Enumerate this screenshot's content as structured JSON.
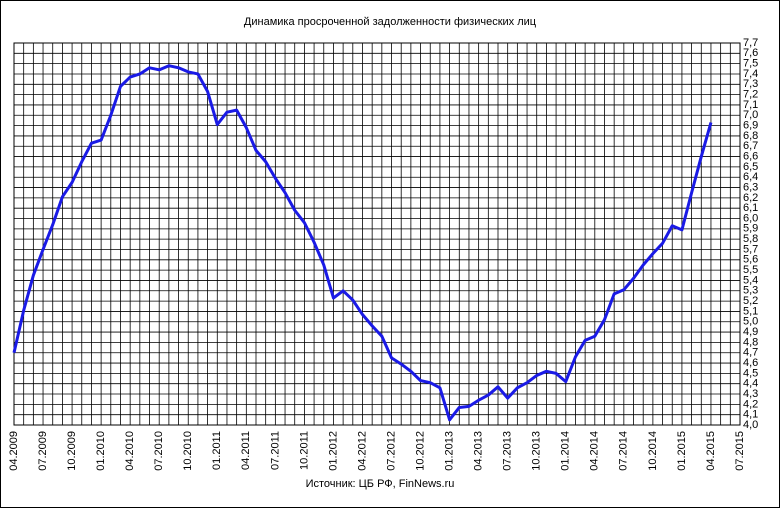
{
  "chart_data": {
    "type": "line",
    "title": "Динамика просроченной задолженности физических лиц",
    "source": "Источник: ЦБ РФ, FinNews.ru",
    "categories": [
      "04.2009",
      null,
      null,
      "07.2009",
      null,
      null,
      "10.2009",
      null,
      null,
      "01.2010",
      null,
      null,
      "04.2010",
      null,
      null,
      "07.2010",
      null,
      null,
      "10.2010",
      null,
      null,
      "01.2011",
      null,
      null,
      "04.2011",
      null,
      null,
      "07.2011",
      null,
      null,
      "10.2011",
      null,
      null,
      "01.2012",
      null,
      null,
      "04.2012",
      null,
      null,
      "07.2012",
      null,
      null,
      "10.2012",
      null,
      null,
      "01.2013",
      null,
      null,
      "04.2013",
      null,
      null,
      "07.2013",
      null,
      null,
      "10.2013",
      null,
      null,
      "01.2014",
      null,
      null,
      "04.2014",
      null,
      null,
      "07.2014",
      null,
      null,
      "10.2014",
      null,
      null,
      "01.2015",
      null,
      null,
      "04.2015",
      null,
      null,
      "07.2015"
    ],
    "series": [
      {
        "color": "#1a1ae6",
        "values": [
          4.7,
          5.11,
          5.45,
          5.7,
          5.94,
          6.21,
          6.35,
          6.55,
          6.73,
          6.76,
          7.0,
          7.28,
          7.37,
          7.4,
          7.46,
          7.44,
          7.48,
          7.46,
          7.42,
          7.4,
          7.23,
          6.91,
          7.03,
          7.05,
          6.88,
          6.66,
          6.55,
          6.39,
          6.25,
          6.08,
          5.96,
          5.77,
          5.55,
          5.23,
          5.3,
          5.21,
          5.07,
          4.96,
          4.86,
          4.65,
          4.59,
          4.52,
          4.43,
          4.41,
          4.36,
          4.05,
          4.17,
          4.18,
          4.24,
          4.29,
          4.37,
          4.26,
          4.36,
          4.41,
          4.48,
          4.52,
          4.5,
          4.42,
          4.66,
          4.82,
          4.86,
          5.02,
          5.27,
          5.31,
          5.42,
          5.55,
          5.66,
          5.76,
          5.93,
          5.89,
          6.25,
          6.6,
          6.93,
          null,
          null,
          null
        ]
      }
    ],
    "ylim": [
      4.0,
      7.7
    ],
    "yticks": [
      {
        "value": 4.0,
        "label": "4,0"
      },
      {
        "value": 4.1,
        "label": "4,1"
      },
      {
        "value": 4.2,
        "label": "4,2"
      },
      {
        "value": 4.3,
        "label": "4,3"
      },
      {
        "value": 4.4,
        "label": "4,4"
      },
      {
        "value": 4.5,
        "label": "4,5"
      },
      {
        "value": 4.6,
        "label": "4,6"
      },
      {
        "value": 4.7,
        "label": "4,7"
      },
      {
        "value": 4.8,
        "label": "4,8"
      },
      {
        "value": 4.9,
        "label": "4,9"
      },
      {
        "value": 5.0,
        "label": "5,0"
      },
      {
        "value": 5.1,
        "label": "5,1"
      },
      {
        "value": 5.2,
        "label": "5,2"
      },
      {
        "value": 5.3,
        "label": "5,3"
      },
      {
        "value": 5.4,
        "label": "5,4"
      },
      {
        "value": 5.5,
        "label": "5,5"
      },
      {
        "value": 5.6,
        "label": "5,6"
      },
      {
        "value": 5.7,
        "label": "5,7"
      },
      {
        "value": 5.8,
        "label": "5,8"
      },
      {
        "value": 5.9,
        "label": "5,9"
      },
      {
        "value": 6.0,
        "label": "6,0"
      },
      {
        "value": 6.1,
        "label": "6,1"
      },
      {
        "value": 6.2,
        "label": "6,2"
      },
      {
        "value": 6.3,
        "label": "6,3"
      },
      {
        "value": 6.4,
        "label": "6,4"
      },
      {
        "value": 6.5,
        "label": "6,5"
      },
      {
        "value": 6.6,
        "label": "6,6"
      },
      {
        "value": 6.7,
        "label": "6,7"
      },
      {
        "value": 6.8,
        "label": "6,8"
      },
      {
        "value": 6.9,
        "label": "6,9"
      },
      {
        "value": 7.0,
        "label": "7,0"
      },
      {
        "value": 7.1,
        "label": "7,1"
      },
      {
        "value": 7.2,
        "label": "7,2"
      },
      {
        "value": 7.3,
        "label": "7,3"
      },
      {
        "value": 7.4,
        "label": "7,4"
      },
      {
        "value": 7.5,
        "label": "7,5"
      },
      {
        "value": 7.6,
        "label": "7,6"
      },
      {
        "value": 7.7,
        "label": "7,7"
      }
    ],
    "grid": true
  }
}
